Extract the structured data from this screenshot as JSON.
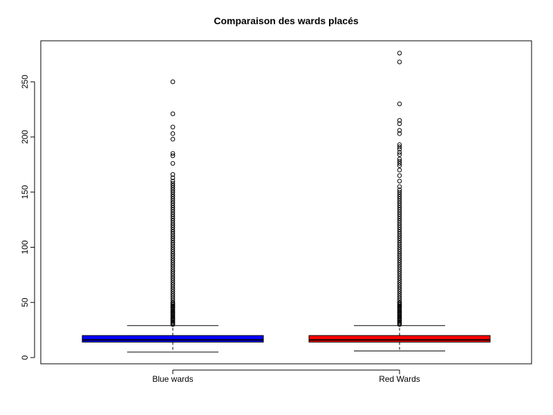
{
  "chart_data": {
    "type": "boxplot",
    "title": "Comparaison des wards placés",
    "xlabel": "",
    "ylabel": "",
    "ylim": [
      0,
      280
    ],
    "yticks": [
      0,
      50,
      100,
      150,
      200,
      250
    ],
    "grid": false,
    "legend": "none",
    "categories": [
      "Blue wards",
      "Red Wards"
    ],
    "series": [
      {
        "name": "Blue wards",
        "color": "#0000ff",
        "min": 5,
        "q1": 14,
        "median": 16,
        "q3": 20,
        "max": 29,
        "outliers": [
          30,
          31,
          32,
          33,
          34,
          35,
          36,
          37,
          38,
          39,
          40,
          41,
          42,
          43,
          44,
          45,
          46,
          47,
          48,
          49,
          50,
          52,
          54,
          56,
          58,
          60,
          62,
          64,
          66,
          68,
          70,
          72,
          74,
          76,
          78,
          80,
          82,
          84,
          86,
          88,
          90,
          92,
          94,
          96,
          98,
          100,
          102,
          104,
          106,
          108,
          110,
          112,
          114,
          116,
          118,
          120,
          122,
          124,
          126,
          128,
          130,
          132,
          134,
          136,
          138,
          140,
          142,
          144,
          146,
          148,
          150,
          152,
          154,
          156,
          158,
          160,
          163,
          166,
          176,
          183,
          185,
          198,
          203,
          209,
          221,
          250
        ]
      },
      {
        "name": "Red Wards",
        "color": "#ff0000",
        "min": 6,
        "q1": 14,
        "median": 16,
        "q3": 20,
        "max": 29,
        "outliers": [
          30,
          31,
          32,
          33,
          34,
          35,
          36,
          37,
          38,
          39,
          40,
          41,
          42,
          43,
          44,
          45,
          46,
          47,
          48,
          49,
          50,
          52,
          54,
          56,
          58,
          60,
          62,
          64,
          66,
          68,
          70,
          72,
          74,
          76,
          78,
          80,
          82,
          84,
          86,
          88,
          90,
          92,
          94,
          96,
          98,
          100,
          102,
          104,
          106,
          108,
          110,
          112,
          114,
          116,
          118,
          120,
          122,
          124,
          126,
          128,
          130,
          132,
          134,
          136,
          138,
          140,
          142,
          144,
          146,
          148,
          150,
          152,
          155,
          160,
          165,
          170,
          174,
          176,
          178,
          180,
          184,
          186,
          189,
          191,
          193,
          203,
          206,
          212,
          215,
          230,
          268,
          276
        ]
      }
    ]
  }
}
